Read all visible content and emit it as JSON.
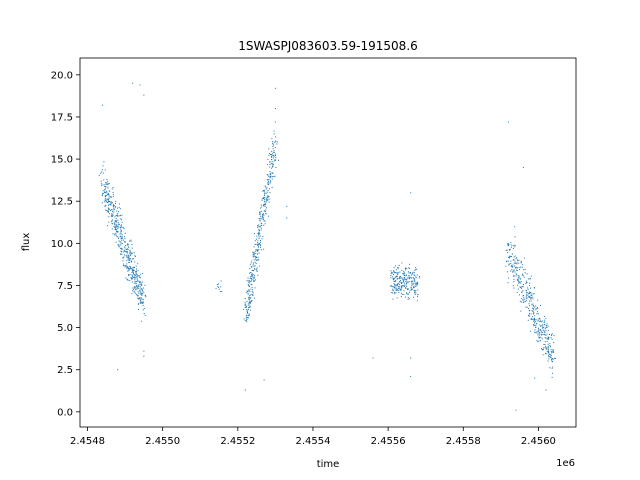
{
  "chart_data": {
    "type": "scatter",
    "title": "1SWASPJ083603.59-191508.6",
    "xlabel": "time",
    "ylabel": "flux",
    "x_offset_label": "1e6",
    "xlim": [
      2.45478,
      2.4561
    ],
    "ylim": [
      -0.9,
      21.0
    ],
    "x_ticks": [
      2.4548,
      2.455,
      2.4552,
      2.4554,
      2.4556,
      2.4558,
      2.456
    ],
    "x_tick_labels": [
      "2.4548",
      "2.4550",
      "2.4552",
      "2.4554",
      "2.4556",
      "2.4558",
      "2.4560"
    ],
    "y_ticks": [
      0.0,
      2.5,
      5.0,
      7.5,
      10.0,
      12.5,
      15.0,
      17.5,
      20.0
    ],
    "y_tick_labels": [
      "0.0",
      "2.5",
      "5.0",
      "7.5",
      "10.0",
      "12.5",
      "15.0",
      "17.5",
      "20.0"
    ],
    "marker_color": "#1f77b4",
    "grid": false,
    "segments": [
      {
        "x_start": 2.45484,
        "x_end": 2.45495,
        "y_start": 13.5,
        "y_end": 6.5,
        "spread": 0.6,
        "count": 500
      },
      {
        "x_start": 2.45515,
        "x_end": 2.45515,
        "y_start": 7.3,
        "y_end": 7.3,
        "spread": 0.3,
        "count": 10
      },
      {
        "x_start": 2.45522,
        "x_end": 2.4553,
        "y_start": 5.5,
        "y_end": 16.0,
        "spread": 0.6,
        "count": 400
      },
      {
        "x_start": 2.45561,
        "x_end": 2.45568,
        "y_start": 7.8,
        "y_end": 7.6,
        "spread": 0.5,
        "count": 250
      },
      {
        "x_start": 2.45592,
        "x_end": 2.45604,
        "y_start": 9.5,
        "y_end": 3.3,
        "spread": 0.7,
        "count": 420
      }
    ],
    "outliers": [
      [
        2.45484,
        18.2
      ],
      [
        2.45492,
        19.5
      ],
      [
        2.45494,
        19.4
      ],
      [
        2.45495,
        18.8
      ],
      [
        2.45495,
        3.6
      ],
      [
        2.45495,
        3.3
      ],
      [
        2.4553,
        19.2
      ],
      [
        2.4553,
        18.0
      ],
      [
        2.4553,
        17.2
      ],
      [
        2.45533,
        12.2
      ],
      [
        2.45533,
        11.5
      ],
      [
        2.45522,
        1.3
      ],
      [
        2.45527,
        1.9
      ],
      [
        2.45566,
        13.0
      ],
      [
        2.45566,
        2.1
      ],
      [
        2.45566,
        3.2
      ],
      [
        2.45556,
        3.2
      ],
      [
        2.45592,
        17.2
      ],
      [
        2.45594,
        0.1
      ],
      [
        2.45599,
        2.0
      ],
      [
        2.45602,
        1.3
      ],
      [
        2.45601,
        3.7
      ],
      [
        2.45488,
        2.5
      ],
      [
        2.45596,
        14.5
      ]
    ]
  }
}
